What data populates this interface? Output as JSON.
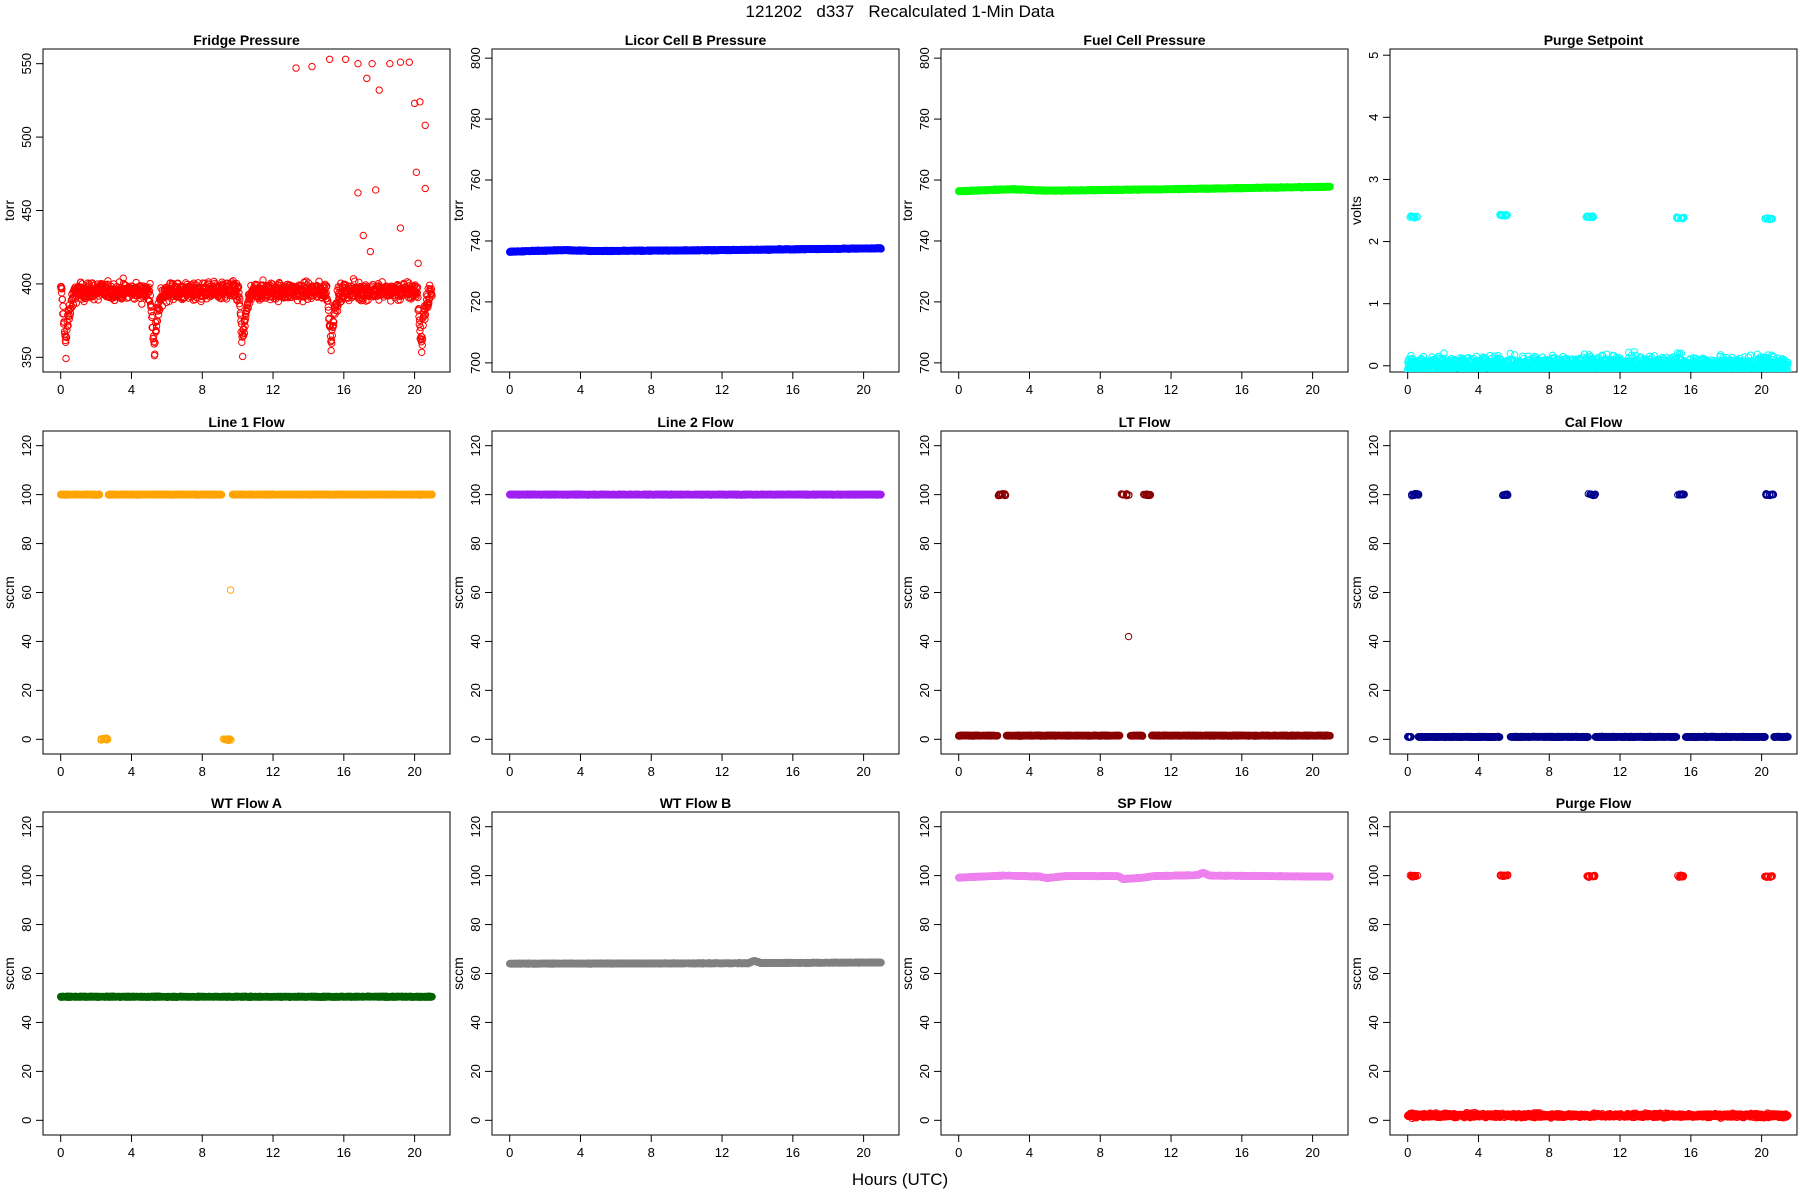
{
  "figure": {
    "title": "121202   d337   Recalculated 1-Min Data",
    "xlabel": "Hours (UTC)"
  },
  "chart_data": [
    {
      "type": "scatter",
      "title": "Fridge Pressure",
      "ylabel": "torr",
      "ylim": [
        340,
        560
      ],
      "yticks": [
        350,
        400,
        450,
        500,
        550
      ],
      "xlim": [
        -1,
        22
      ],
      "xticks": [
        0,
        4,
        8,
        12,
        16,
        20
      ],
      "color": "#ff0000",
      "marker": "open-circle",
      "x_range": [
        0,
        21
      ],
      "description": "Noisy ~395 torr with periodic drops to ~345 at about 0.3, 5.3, 10.3, 15.3, 20.3 h; scattered high outliers 420-555 after ~13 h",
      "baseline": 395,
      "noise": 6,
      "dips": [
        {
          "x": 0.3,
          "min": 347
        },
        {
          "x": 5.3,
          "min": 345
        },
        {
          "x": 10.3,
          "min": 348
        },
        {
          "x": 15.3,
          "min": 346
        },
        {
          "x": 20.4,
          "min": 346
        }
      ],
      "outliers": [
        [
          13.3,
          547
        ],
        [
          14.2,
          548
        ],
        [
          15.2,
          553
        ],
        [
          16.1,
          553
        ],
        [
          16.8,
          550
        ],
        [
          17.3,
          540
        ],
        [
          17.6,
          550
        ],
        [
          18,
          532
        ],
        [
          18.6,
          550
        ],
        [
          19.2,
          551
        ],
        [
          19.7,
          551
        ],
        [
          20,
          523
        ],
        [
          20.3,
          524
        ],
        [
          20.6,
          508
        ],
        [
          20.1,
          476
        ],
        [
          20.6,
          465
        ],
        [
          16.8,
          462
        ],
        [
          17.8,
          464
        ],
        [
          19.2,
          438
        ],
        [
          17.1,
          433
        ],
        [
          17.5,
          422
        ],
        [
          20.2,
          414
        ]
      ]
    },
    {
      "type": "scatter",
      "title": "Licor Cell B Pressure",
      "ylabel": "torr",
      "ylim": [
        697,
        803
      ],
      "yticks": [
        700,
        720,
        740,
        760,
        780,
        800
      ],
      "xlim": [
        -1,
        22
      ],
      "xticks": [
        0,
        4,
        8,
        12,
        16,
        20
      ],
      "color": "#0000ff",
      "marker": "open-circle",
      "x_range": [
        0,
        21
      ],
      "description": "Flat line rising slightly from 736.5 to 737.5 torr",
      "line": [
        [
          0,
          736.5
        ],
        [
          3,
          737
        ],
        [
          5,
          736.7
        ],
        [
          12,
          737
        ],
        [
          21,
          737.6
        ]
      ]
    },
    {
      "type": "scatter",
      "title": "Fuel Cell Pressure",
      "ylabel": "torr",
      "ylim": [
        697,
        803
      ],
      "yticks": [
        700,
        720,
        740,
        760,
        780,
        800
      ],
      "xlim": [
        -1,
        22
      ],
      "xticks": [
        0,
        4,
        8,
        12,
        16,
        20
      ],
      "color": "#00ff00",
      "marker": "open-circle",
      "x_range": [
        0,
        21
      ],
      "description": "Flat line near 757 torr",
      "line": [
        [
          0,
          756.3
        ],
        [
          3,
          757
        ],
        [
          5,
          756.5
        ],
        [
          12,
          757
        ],
        [
          21,
          757.8
        ]
      ]
    },
    {
      "type": "scatter",
      "title": "Purge Setpoint",
      "ylabel": "volts",
      "ylim": [
        -0.1,
        5.1
      ],
      "yticks": [
        0,
        1,
        2,
        3,
        4,
        5
      ],
      "xlim": [
        -1,
        22
      ],
      "xticks": [
        0,
        4,
        8,
        12,
        16,
        20
      ],
      "color": "#00ffff",
      "marker": "open-circle",
      "x_range": [
        0,
        21.5
      ],
      "description": "0 volts baseline with short purges at 2.4 volts",
      "line": [
        [
          0,
          0
        ],
        [
          21.5,
          0
        ]
      ],
      "clusters": [
        {
          "x": 0.35,
          "y": 2.4
        },
        {
          "x": 5.4,
          "y": 2.43
        },
        {
          "x": 10.3,
          "y": 2.4
        },
        {
          "x": 15.4,
          "y": 2.38
        },
        {
          "x": 20.4,
          "y": 2.37
        }
      ]
    },
    {
      "type": "scatter",
      "title": "Line 1 Flow",
      "ylabel": "sccm",
      "ylim": [
        -6,
        126
      ],
      "yticks": [
        0,
        20,
        40,
        60,
        80,
        100,
        120
      ],
      "xlim": [
        -1,
        22
      ],
      "xticks": [
        0,
        4,
        8,
        12,
        16,
        20
      ],
      "color": "#ffa500",
      "marker": "open-circle",
      "x_range": [
        0,
        21
      ],
      "description": "100 sccm with two short off periods at 0 near 2.5 h and 9.4 h; single point ~61",
      "line": [
        [
          0,
          100
        ],
        [
          21,
          100
        ]
      ],
      "gaps": [
        [
          2.2,
          2.7
        ],
        [
          9.1,
          9.7
        ]
      ],
      "clusters": [
        {
          "x": 2.45,
          "y": 0
        },
        {
          "x": 9.4,
          "y": 0
        }
      ],
      "outliers": [
        [
          9.6,
          61
        ]
      ]
    },
    {
      "type": "scatter",
      "title": "Line 2 Flow",
      "ylabel": "sccm",
      "ylim": [
        -6,
        126
      ],
      "yticks": [
        0,
        20,
        40,
        60,
        80,
        100,
        120
      ],
      "xlim": [
        -1,
        22
      ],
      "xticks": [
        0,
        4,
        8,
        12,
        16,
        20
      ],
      "color": "#a020f0",
      "marker": "open-circle",
      "x_range": [
        0,
        21
      ],
      "description": "Constant 100 sccm",
      "line": [
        [
          0,
          100
        ],
        [
          21,
          100
        ]
      ]
    },
    {
      "type": "scatter",
      "title": "LT Flow",
      "ylabel": "sccm",
      "ylim": [
        -6,
        126
      ],
      "yticks": [
        0,
        20,
        40,
        60,
        80,
        100,
        120
      ],
      "xlim": [
        -1,
        22
      ],
      "xticks": [
        0,
        4,
        8,
        12,
        16,
        20
      ],
      "color": "#8b0000",
      "marker": "open-circle",
      "x_range": [
        0,
        21
      ],
      "description": "~1 sccm baseline with short 100 sccm periods near 2.5, 9.4, 10.6 h; single point ~42",
      "line": [
        [
          0,
          1.5
        ],
        [
          21,
          1.5
        ]
      ],
      "gaps": [
        [
          2.2,
          2.7
        ],
        [
          9.1,
          9.7
        ],
        [
          10.4,
          10.9
        ]
      ],
      "clusters": [
        {
          "x": 2.45,
          "y": 100
        },
        {
          "x": 9.4,
          "y": 100
        },
        {
          "x": 10.65,
          "y": 100
        }
      ],
      "outliers": [
        [
          9.6,
          42
        ]
      ]
    },
    {
      "type": "scatter",
      "title": "Cal Flow",
      "ylabel": "sccm",
      "ylim": [
        -6,
        126
      ],
      "yticks": [
        0,
        20,
        40,
        60,
        80,
        100,
        120
      ],
      "xlim": [
        -1,
        22
      ],
      "xticks": [
        0,
        4,
        8,
        12,
        16,
        20
      ],
      "color": "#00008b",
      "marker": "open-circle",
      "x_range": [
        0,
        21.5
      ],
      "description": "~1 sccm baseline with 100 sccm calibration periods",
      "line": [
        [
          0,
          1
        ],
        [
          21.5,
          1
        ]
      ],
      "gaps": [
        [
          0.2,
          0.6
        ],
        [
          5.2,
          5.8
        ],
        [
          10.2,
          10.6
        ],
        [
          15.2,
          15.7
        ],
        [
          20.2,
          20.7
        ]
      ],
      "clusters": [
        {
          "x": 0.4,
          "y": 100
        },
        {
          "x": 5.5,
          "y": 100
        },
        {
          "x": 10.4,
          "y": 100
        },
        {
          "x": 15.45,
          "y": 100
        },
        {
          "x": 20.45,
          "y": 100
        }
      ]
    },
    {
      "type": "scatter",
      "title": "WT Flow A",
      "ylabel": "sccm",
      "ylim": [
        -6,
        126
      ],
      "yticks": [
        0,
        20,
        40,
        60,
        80,
        100,
        120
      ],
      "xlim": [
        -1,
        22
      ],
      "xticks": [
        0,
        4,
        8,
        12,
        16,
        20
      ],
      "color": "#006400",
      "marker": "open-circle",
      "x_range": [
        0,
        21
      ],
      "description": "Constant ~50.5 sccm",
      "line": [
        [
          0,
          50.5
        ],
        [
          21,
          50.5
        ]
      ]
    },
    {
      "type": "scatter",
      "title": "WT Flow B",
      "ylabel": "sccm",
      "ylim": [
        -6,
        126
      ],
      "yticks": [
        0,
        20,
        40,
        60,
        80,
        100,
        120
      ],
      "xlim": [
        -1,
        22
      ],
      "xticks": [
        0,
        4,
        8,
        12,
        16,
        20
      ],
      "color": "#808080",
      "marker": "open-circle",
      "x_range": [
        0,
        21
      ],
      "description": "Near 64 sccm, slight bump around 13.8 h",
      "line": [
        [
          0,
          64
        ],
        [
          13.5,
          64.2
        ],
        [
          13.8,
          65.2
        ],
        [
          14.2,
          64.3
        ],
        [
          21,
          64.5
        ]
      ]
    },
    {
      "type": "scatter",
      "title": "SP Flow",
      "ylabel": "sccm",
      "ylim": [
        -6,
        126
      ],
      "yticks": [
        0,
        20,
        40,
        60,
        80,
        100,
        120
      ],
      "xlim": [
        -1,
        22
      ],
      "xticks": [
        0,
        4,
        8,
        12,
        16,
        20
      ],
      "color": "#ee82ee",
      "marker": "open-circle",
      "x_range": [
        0,
        21
      ],
      "description": "Around 99-101 sccm with small dips and bumps",
      "line": [
        [
          0,
          99.2
        ],
        [
          2.5,
          100
        ],
        [
          4.5,
          99.7
        ],
        [
          5,
          99
        ],
        [
          6,
          99.8
        ],
        [
          9,
          99.8
        ],
        [
          9.3,
          98.6
        ],
        [
          10.5,
          99.2
        ],
        [
          11,
          99.8
        ],
        [
          13.5,
          100.2
        ],
        [
          13.8,
          101.2
        ],
        [
          14.2,
          100
        ],
        [
          21,
          99.6
        ]
      ]
    },
    {
      "type": "scatter",
      "title": "Purge Flow",
      "ylabel": "sccm",
      "ylim": [
        -6,
        126
      ],
      "yticks": [
        0,
        20,
        40,
        60,
        80,
        100,
        120
      ],
      "xlim": [
        -1,
        22
      ],
      "xticks": [
        0,
        4,
        8,
        12,
        16,
        20
      ],
      "color": "#ff0000",
      "marker": "open-circle",
      "x_range": [
        0,
        21.5
      ],
      "description": "~2 sccm baseline with short 100 sccm purges",
      "baseline": 2,
      "noise": 0.8,
      "clusters": [
        {
          "x": 0.35,
          "y": 99.8
        },
        {
          "x": 5.45,
          "y": 100
        },
        {
          "x": 10.35,
          "y": 99.7
        },
        {
          "x": 15.45,
          "y": 99.8
        },
        {
          "x": 20.4,
          "y": 99.7
        }
      ]
    }
  ]
}
